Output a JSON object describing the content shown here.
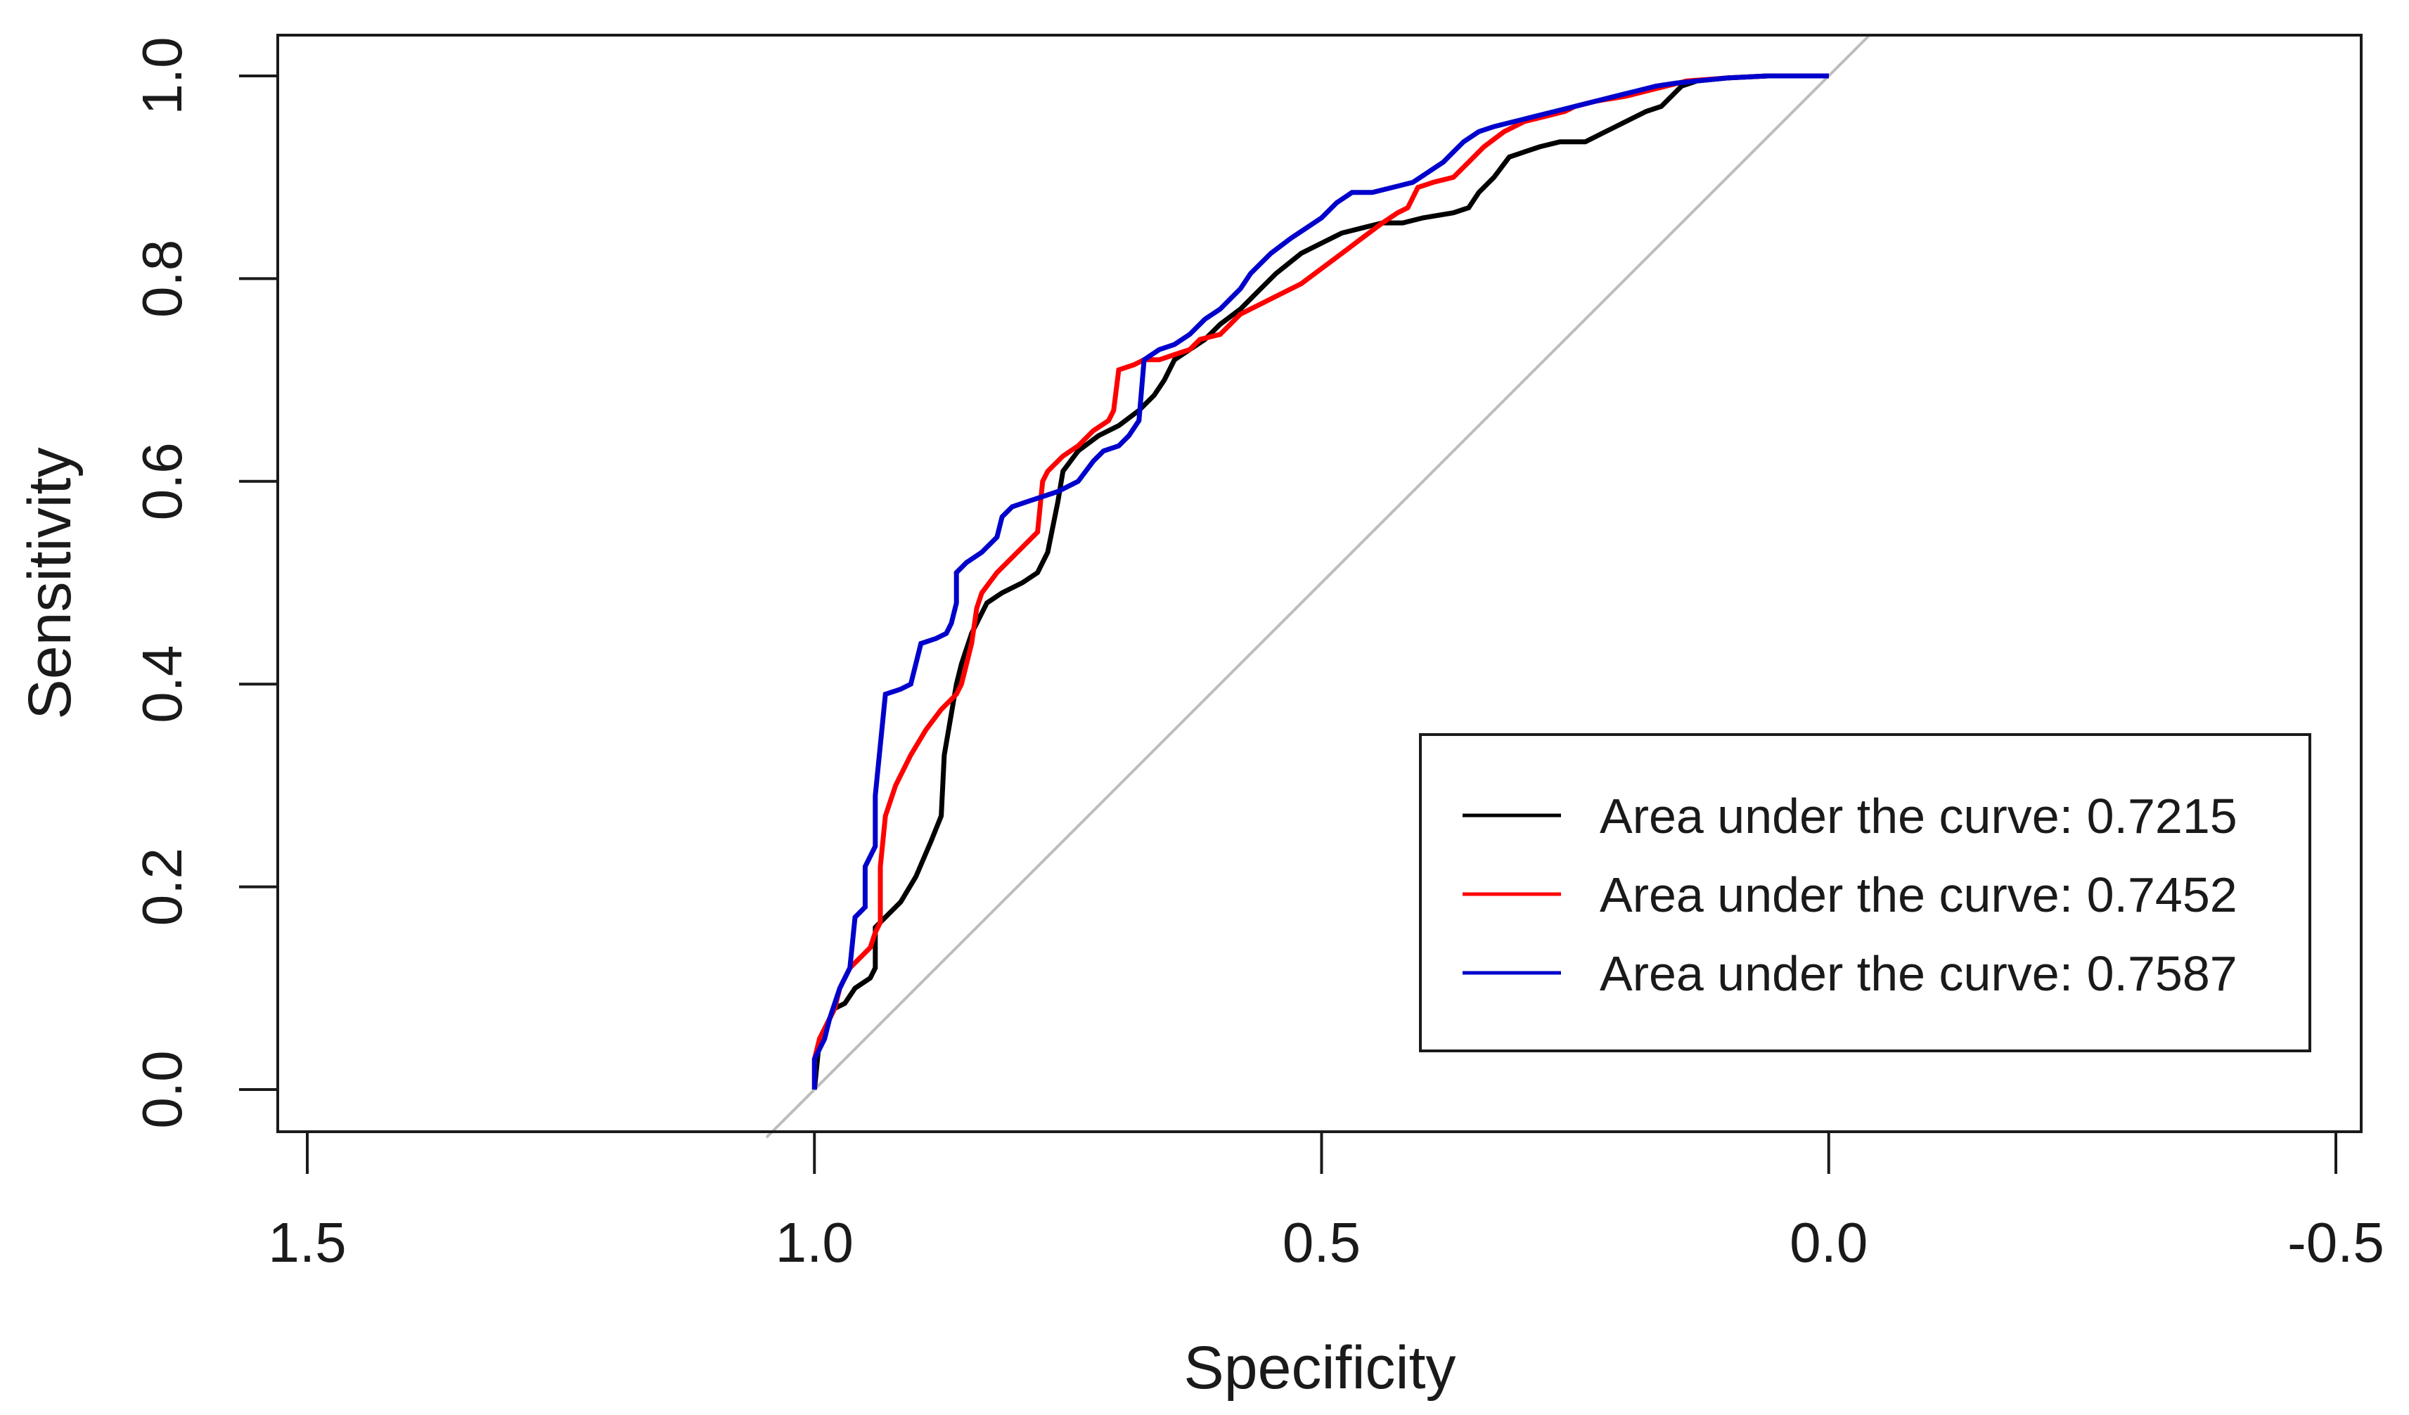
{
  "chart_data": {
    "type": "line",
    "title": "",
    "xlabel": "Specificity",
    "ylabel": "Sensitivity",
    "xlim": [
      1.5,
      -0.5
    ],
    "ylim": [
      0.0,
      1.0
    ],
    "x_reversed": true,
    "xticks": [
      1.5,
      1.0,
      0.5,
      0.0,
      -0.5
    ],
    "xtick_labels": [
      "1.5",
      "1.0",
      "0.5",
      "0.0",
      "-0.5"
    ],
    "yticks": [
      0.0,
      0.2,
      0.4,
      0.6,
      0.8,
      1.0
    ],
    "ytick_labels": [
      "0.0",
      "0.2",
      "0.4",
      "0.6",
      "0.8",
      "1.0"
    ],
    "grid": false,
    "legend_position": "bottom-right",
    "reference_line": {
      "from": [
        1.0,
        0.0
      ],
      "to": [
        0.0,
        1.0
      ],
      "color": "#bdbdbd"
    },
    "series": [
      {
        "name": "Area under the curve: 0.7215",
        "color": "#000000",
        "points": [
          [
            1.0,
            0.0
          ],
          [
            0.995,
            0.05
          ],
          [
            0.985,
            0.07
          ],
          [
            0.98,
            0.08
          ],
          [
            0.97,
            0.085
          ],
          [
            0.96,
            0.1
          ],
          [
            0.945,
            0.11
          ],
          [
            0.94,
            0.12
          ],
          [
            0.94,
            0.16
          ],
          [
            0.93,
            0.17
          ],
          [
            0.915,
            0.185
          ],
          [
            0.9,
            0.21
          ],
          [
            0.885,
            0.245
          ],
          [
            0.875,
            0.27
          ],
          [
            0.872,
            0.33
          ],
          [
            0.86,
            0.4
          ],
          [
            0.855,
            0.42
          ],
          [
            0.845,
            0.45
          ],
          [
            0.83,
            0.48
          ],
          [
            0.815,
            0.49
          ],
          [
            0.795,
            0.5
          ],
          [
            0.78,
            0.51
          ],
          [
            0.77,
            0.53
          ],
          [
            0.76,
            0.58
          ],
          [
            0.755,
            0.61
          ],
          [
            0.74,
            0.63
          ],
          [
            0.72,
            0.645
          ],
          [
            0.7,
            0.655
          ],
          [
            0.68,
            0.67
          ],
          [
            0.665,
            0.685
          ],
          [
            0.655,
            0.7
          ],
          [
            0.645,
            0.72
          ],
          [
            0.63,
            0.73
          ],
          [
            0.615,
            0.74
          ],
          [
            0.6,
            0.755
          ],
          [
            0.58,
            0.77
          ],
          [
            0.56,
            0.79
          ],
          [
            0.545,
            0.805
          ],
          [
            0.52,
            0.825
          ],
          [
            0.5,
            0.835
          ],
          [
            0.48,
            0.845
          ],
          [
            0.46,
            0.85
          ],
          [
            0.44,
            0.855
          ],
          [
            0.42,
            0.855
          ],
          [
            0.4,
            0.86
          ],
          [
            0.37,
            0.865
          ],
          [
            0.355,
            0.87
          ],
          [
            0.345,
            0.885
          ],
          [
            0.33,
            0.9
          ],
          [
            0.315,
            0.92
          ],
          [
            0.3,
            0.925
          ],
          [
            0.285,
            0.93
          ],
          [
            0.265,
            0.935
          ],
          [
            0.24,
            0.935
          ],
          [
            0.22,
            0.945
          ],
          [
            0.2,
            0.955
          ],
          [
            0.18,
            0.965
          ],
          [
            0.165,
            0.97
          ],
          [
            0.155,
            0.98
          ],
          [
            0.145,
            0.99
          ],
          [
            0.13,
            0.995
          ],
          [
            0.1,
            0.998
          ],
          [
            0.06,
            1.0
          ],
          [
            0.0,
            1.0
          ]
        ]
      },
      {
        "name": "Area under the curve: 0.7452",
        "color": "#ff0000",
        "points": [
          [
            1.0,
            0.0
          ],
          [
            1.0,
            0.03
          ],
          [
            0.995,
            0.05
          ],
          [
            0.99,
            0.06
          ],
          [
            0.98,
            0.08
          ],
          [
            0.975,
            0.1
          ],
          [
            0.965,
            0.12
          ],
          [
            0.955,
            0.13
          ],
          [
            0.945,
            0.14
          ],
          [
            0.94,
            0.155
          ],
          [
            0.935,
            0.165
          ],
          [
            0.935,
            0.22
          ],
          [
            0.93,
            0.27
          ],
          [
            0.92,
            0.3
          ],
          [
            0.905,
            0.33
          ],
          [
            0.89,
            0.355
          ],
          [
            0.875,
            0.375
          ],
          [
            0.86,
            0.39
          ],
          [
            0.855,
            0.4
          ],
          [
            0.85,
            0.42
          ],
          [
            0.845,
            0.44
          ],
          [
            0.84,
            0.475
          ],
          [
            0.835,
            0.49
          ],
          [
            0.82,
            0.51
          ],
          [
            0.8,
            0.53
          ],
          [
            0.78,
            0.55
          ],
          [
            0.775,
            0.6
          ],
          [
            0.77,
            0.61
          ],
          [
            0.755,
            0.625
          ],
          [
            0.74,
            0.635
          ],
          [
            0.725,
            0.65
          ],
          [
            0.71,
            0.66
          ],
          [
            0.705,
            0.67
          ],
          [
            0.7,
            0.71
          ],
          [
            0.685,
            0.715
          ],
          [
            0.675,
            0.72
          ],
          [
            0.66,
            0.72
          ],
          [
            0.645,
            0.725
          ],
          [
            0.63,
            0.73
          ],
          [
            0.62,
            0.74
          ],
          [
            0.6,
            0.745
          ],
          [
            0.58,
            0.765
          ],
          [
            0.56,
            0.775
          ],
          [
            0.54,
            0.785
          ],
          [
            0.52,
            0.795
          ],
          [
            0.5,
            0.81
          ],
          [
            0.48,
            0.825
          ],
          [
            0.46,
            0.84
          ],
          [
            0.44,
            0.855
          ],
          [
            0.425,
            0.865
          ],
          [
            0.415,
            0.87
          ],
          [
            0.405,
            0.89
          ],
          [
            0.39,
            0.895
          ],
          [
            0.37,
            0.9
          ],
          [
            0.355,
            0.915
          ],
          [
            0.34,
            0.93
          ],
          [
            0.32,
            0.945
          ],
          [
            0.3,
            0.955
          ],
          [
            0.28,
            0.96
          ],
          [
            0.26,
            0.965
          ],
          [
            0.25,
            0.97
          ],
          [
            0.23,
            0.975
          ],
          [
            0.2,
            0.98
          ],
          [
            0.18,
            0.985
          ],
          [
            0.16,
            0.99
          ],
          [
            0.14,
            0.995
          ],
          [
            0.1,
            0.998
          ],
          [
            0.06,
            1.0
          ],
          [
            0.0,
            1.0
          ]
        ]
      },
      {
        "name": "Area under the curve: 0.7587",
        "color": "#0000cc",
        "points": [
          [
            1.0,
            0.0
          ],
          [
            1.0,
            0.03
          ],
          [
            0.99,
            0.05
          ],
          [
            0.985,
            0.07
          ],
          [
            0.975,
            0.1
          ],
          [
            0.965,
            0.12
          ],
          [
            0.96,
            0.17
          ],
          [
            0.95,
            0.18
          ],
          [
            0.95,
            0.22
          ],
          [
            0.94,
            0.24
          ],
          [
            0.94,
            0.29
          ],
          [
            0.935,
            0.34
          ],
          [
            0.93,
            0.39
          ],
          [
            0.915,
            0.395
          ],
          [
            0.905,
            0.4
          ],
          [
            0.9,
            0.42
          ],
          [
            0.895,
            0.44
          ],
          [
            0.88,
            0.445
          ],
          [
            0.87,
            0.45
          ],
          [
            0.865,
            0.46
          ],
          [
            0.86,
            0.48
          ],
          [
            0.86,
            0.51
          ],
          [
            0.85,
            0.52
          ],
          [
            0.835,
            0.53
          ],
          [
            0.82,
            0.545
          ],
          [
            0.815,
            0.565
          ],
          [
            0.805,
            0.575
          ],
          [
            0.79,
            0.58
          ],
          [
            0.775,
            0.585
          ],
          [
            0.76,
            0.59
          ],
          [
            0.74,
            0.6
          ],
          [
            0.725,
            0.62
          ],
          [
            0.715,
            0.63
          ],
          [
            0.7,
            0.635
          ],
          [
            0.69,
            0.645
          ],
          [
            0.68,
            0.66
          ],
          [
            0.675,
            0.72
          ],
          [
            0.66,
            0.73
          ],
          [
            0.645,
            0.735
          ],
          [
            0.63,
            0.745
          ],
          [
            0.615,
            0.76
          ],
          [
            0.6,
            0.77
          ],
          [
            0.59,
            0.78
          ],
          [
            0.58,
            0.79
          ],
          [
            0.57,
            0.805
          ],
          [
            0.56,
            0.815
          ],
          [
            0.55,
            0.825
          ],
          [
            0.53,
            0.84
          ],
          [
            0.515,
            0.85
          ],
          [
            0.5,
            0.86
          ],
          [
            0.485,
            0.875
          ],
          [
            0.47,
            0.885
          ],
          [
            0.45,
            0.885
          ],
          [
            0.43,
            0.89
          ],
          [
            0.41,
            0.895
          ],
          [
            0.395,
            0.905
          ],
          [
            0.38,
            0.915
          ],
          [
            0.37,
            0.925
          ],
          [
            0.36,
            0.935
          ],
          [
            0.345,
            0.945
          ],
          [
            0.33,
            0.95
          ],
          [
            0.31,
            0.955
          ],
          [
            0.29,
            0.96
          ],
          [
            0.27,
            0.965
          ],
          [
            0.25,
            0.97
          ],
          [
            0.23,
            0.975
          ],
          [
            0.21,
            0.98
          ],
          [
            0.19,
            0.985
          ],
          [
            0.17,
            0.99
          ],
          [
            0.15,
            0.993
          ],
          [
            0.13,
            0.995
          ],
          [
            0.1,
            0.998
          ],
          [
            0.06,
            1.0
          ],
          [
            0.0,
            1.0
          ]
        ]
      }
    ]
  }
}
